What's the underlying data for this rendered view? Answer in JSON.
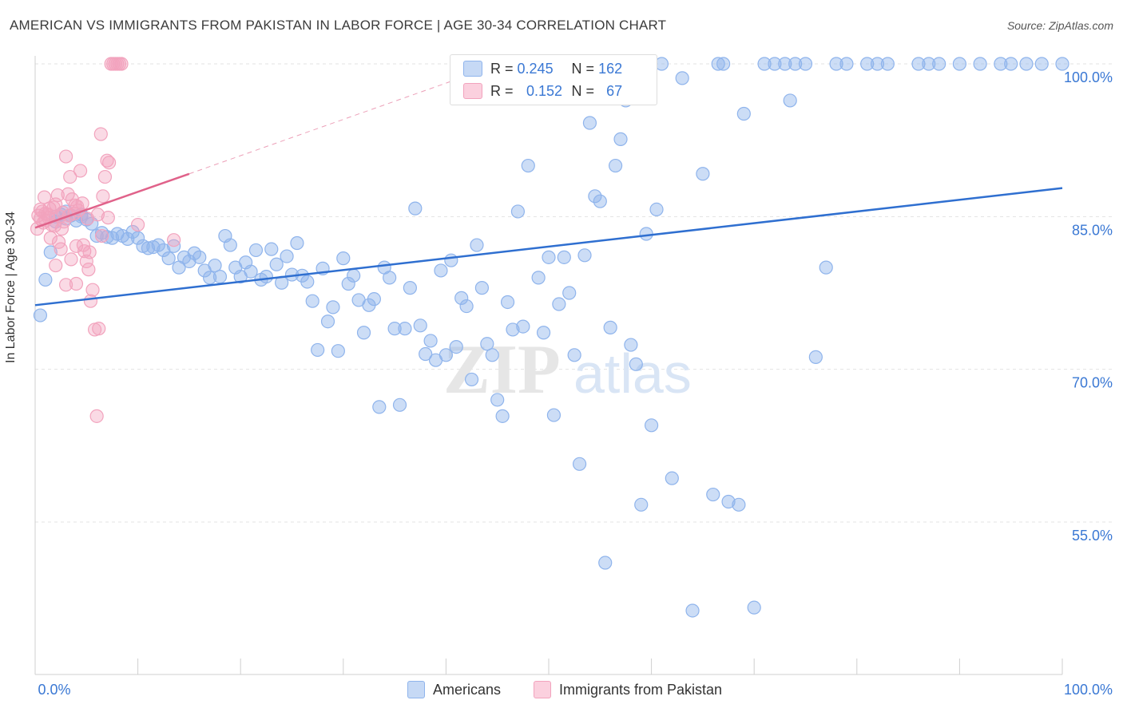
{
  "title": "AMERICAN VS IMMIGRANTS FROM PAKISTAN IN LABOR FORCE | AGE 30-34 CORRELATION CHART",
  "source": "Source: ZipAtlas.com",
  "legend": {
    "rows": [
      {
        "r_label": "R =",
        "r_value": "0.245",
        "n_label": "N =",
        "n_value": "162"
      },
      {
        "r_label": "R =",
        "r_value": "0.152",
        "n_label": "N =",
        "n_value": "67"
      }
    ]
  },
  "bottom_legend": [
    "Americans",
    "Immigrants from Pakistan"
  ],
  "watermark": "ZIPatlas",
  "colors": {
    "americans": "#8fb4ec",
    "americans_line": "#2f6fd0",
    "pakistan": "#f2a3bd",
    "pakistan_line": "#e0628a",
    "axis_text": "#3a78d4"
  },
  "chart_data": {
    "type": "scatter",
    "title": "AMERICAN VS IMMIGRANTS FROM PAKISTAN IN LABOR FORCE | AGE 30-34 CORRELATION CHART",
    "xlabel": "",
    "ylabel": "In Labor Force | Age 30-34",
    "xlim": [
      0,
      100
    ],
    "ylim": [
      40,
      102
    ],
    "x_tick_labels": [
      "0.0%",
      "100.0%"
    ],
    "y_ticks": [
      55,
      70,
      85,
      100
    ],
    "y_tick_labels": [
      "55.0%",
      "70.0%",
      "85.0%",
      "100.0%"
    ],
    "grid": true,
    "series": [
      {
        "name": "Americans",
        "r": 0.245,
        "n": 162,
        "trend": {
          "x": [
            0,
            100
          ],
          "y": [
            76.3,
            87.8
          ]
        },
        "points": [
          [
            0.5,
            75.3
          ],
          [
            1,
            78.8
          ],
          [
            1.5,
            81.5
          ],
          [
            2,
            85
          ],
          [
            2.5,
            85.2
          ],
          [
            3,
            84.8
          ],
          [
            3.5,
            85.1
          ],
          [
            4,
            84.6
          ],
          [
            4.5,
            85
          ],
          [
            5,
            84.7
          ],
          [
            5.5,
            84.3
          ],
          [
            6,
            83.1
          ],
          [
            6.5,
            83.4
          ],
          [
            7,
            83
          ],
          [
            7.5,
            82.9
          ],
          [
            8,
            83.3
          ],
          [
            8.5,
            83.1
          ],
          [
            9,
            82.8
          ],
          [
            9.5,
            83.5
          ],
          [
            10,
            82.9
          ],
          [
            10.5,
            82.1
          ],
          [
            11,
            81.9
          ],
          [
            11.5,
            82
          ],
          [
            12,
            82.2
          ],
          [
            12.5,
            81.7
          ],
          [
            13,
            80.9
          ],
          [
            13.5,
            82.1
          ],
          [
            14,
            80
          ],
          [
            14.5,
            81
          ],
          [
            15,
            80.6
          ],
          [
            15.5,
            81.4
          ],
          [
            16,
            81
          ],
          [
            16.5,
            79.7
          ],
          [
            17,
            79
          ],
          [
            17.5,
            80.2
          ],
          [
            18,
            79.1
          ],
          [
            18.5,
            83.1
          ],
          [
            19,
            82.2
          ],
          [
            19.5,
            80
          ],
          [
            20,
            79.1
          ],
          [
            20.5,
            80.5
          ],
          [
            21,
            79.6
          ],
          [
            21.5,
            81.7
          ],
          [
            22,
            78.8
          ],
          [
            22.5,
            79.1
          ],
          [
            23,
            81.8
          ],
          [
            23.5,
            80.3
          ],
          [
            24,
            78.5
          ],
          [
            24.5,
            81.1
          ],
          [
            25,
            79.3
          ],
          [
            25.5,
            82.4
          ],
          [
            26,
            79.2
          ],
          [
            26.5,
            78.6
          ],
          [
            27,
            76.7
          ],
          [
            27.5,
            71.9
          ],
          [
            28,
            79.9
          ],
          [
            28.5,
            74.7
          ],
          [
            29,
            76.1
          ],
          [
            29.5,
            71.8
          ],
          [
            30,
            80.9
          ],
          [
            30.5,
            78.4
          ],
          [
            31,
            79.2
          ],
          [
            31.5,
            76.8
          ],
          [
            32,
            73.6
          ],
          [
            32.5,
            76.3
          ],
          [
            33,
            76.9
          ],
          [
            33.5,
            66.3
          ],
          [
            34,
            80
          ],
          [
            34.5,
            79
          ],
          [
            35,
            74
          ],
          [
            35.5,
            66.5
          ],
          [
            36,
            74
          ],
          [
            36.5,
            78
          ],
          [
            37,
            85.8
          ],
          [
            37.5,
            74.3
          ],
          [
            38,
            71.5
          ],
          [
            38.5,
            72.8
          ],
          [
            39,
            70.9
          ],
          [
            39.5,
            79.7
          ],
          [
            40,
            71.4
          ],
          [
            40.5,
            80.7
          ],
          [
            41,
            72.2
          ],
          [
            41.5,
            77
          ],
          [
            42,
            76.2
          ],
          [
            42.5,
            69
          ],
          [
            43,
            82.2
          ],
          [
            43.5,
            78
          ],
          [
            44,
            72.5
          ],
          [
            44.5,
            71.4
          ],
          [
            45,
            67
          ],
          [
            45.5,
            65.4
          ],
          [
            46,
            76.6
          ],
          [
            46.5,
            73.9
          ],
          [
            47,
            85.5
          ],
          [
            47.5,
            74.2
          ],
          [
            48,
            90
          ],
          [
            48.5,
            97.5
          ],
          [
            49,
            79
          ],
          [
            49.5,
            73.6
          ],
          [
            50,
            81
          ],
          [
            50.5,
            65.5
          ],
          [
            51,
            76.4
          ],
          [
            51.5,
            81
          ],
          [
            52,
            77.5
          ],
          [
            52.5,
            71.4
          ],
          [
            53,
            60.7
          ],
          [
            53.5,
            81.2
          ],
          [
            54,
            94.2
          ],
          [
            54.5,
            87
          ],
          [
            55,
            86.5
          ],
          [
            55.5,
            51
          ],
          [
            56,
            74.1
          ],
          [
            56.5,
            90
          ],
          [
            57,
            92.6
          ],
          [
            57.5,
            96.4
          ],
          [
            58,
            72.4
          ],
          [
            58.5,
            70.5
          ],
          [
            59,
            56.7
          ],
          [
            59.5,
            83.3
          ],
          [
            60,
            64.5
          ],
          [
            60.5,
            85.7
          ],
          [
            61,
            100
          ],
          [
            62,
            59.3
          ],
          [
            63,
            98.6
          ],
          [
            64,
            46.3
          ],
          [
            65,
            89.2
          ],
          [
            66,
            57.7
          ],
          [
            66.5,
            100
          ],
          [
            67,
            100
          ],
          [
            67.5,
            57
          ],
          [
            68.5,
            56.7
          ],
          [
            69,
            95.1
          ],
          [
            70,
            46.6
          ],
          [
            71,
            100
          ],
          [
            72,
            100
          ],
          [
            73,
            100
          ],
          [
            73.5,
            96.4
          ],
          [
            74,
            100
          ],
          [
            75,
            100
          ],
          [
            76,
            71.2
          ],
          [
            77,
            80
          ],
          [
            78,
            100
          ],
          [
            79,
            100
          ],
          [
            81,
            100
          ],
          [
            82,
            100
          ],
          [
            83,
            100
          ],
          [
            86,
            100
          ],
          [
            87,
            100
          ],
          [
            88,
            100
          ],
          [
            90,
            100
          ],
          [
            92,
            100
          ],
          [
            94,
            100
          ],
          [
            95,
            100
          ],
          [
            96.5,
            100
          ],
          [
            98,
            100
          ],
          [
            100,
            100
          ],
          [
            55,
            100
          ],
          [
            58,
            100
          ],
          [
            52.5,
            100
          ],
          [
            2,
            84.5
          ],
          [
            3,
            85.5
          ],
          [
            4.5,
            85.2
          ]
        ]
      },
      {
        "name": "Immigrants from Pakistan",
        "r": 0.152,
        "n": 67,
        "trend": {
          "x": [
            0,
            15
          ],
          "y": [
            83.9,
            89.2
          ]
        },
        "trend_ext": {
          "x": [
            15,
            47
          ],
          "y": [
            89.2,
            100.6
          ]
        },
        "points": [
          [
            0.3,
            85.1
          ],
          [
            0.5,
            84.8
          ],
          [
            0.7,
            85.5
          ],
          [
            0.9,
            86.9
          ],
          [
            1,
            84.6
          ],
          [
            1.2,
            85.2
          ],
          [
            1.4,
            85.8
          ],
          [
            1.6,
            84.2
          ],
          [
            1.8,
            85.9
          ],
          [
            2,
            86.2
          ],
          [
            2.2,
            87.1
          ],
          [
            2.4,
            85
          ],
          [
            2.6,
            83.8
          ],
          [
            2.8,
            84.5
          ],
          [
            3,
            90.9
          ],
          [
            3.2,
            87.2
          ],
          [
            3.4,
            88.9
          ],
          [
            3.6,
            86.7
          ],
          [
            3.8,
            85.3
          ],
          [
            4,
            82.1
          ],
          [
            4.2,
            85.6
          ],
          [
            4.4,
            89.5
          ],
          [
            4.6,
            86.3
          ],
          [
            4.8,
            81.6
          ],
          [
            5,
            80.6
          ],
          [
            5.2,
            79.8
          ],
          [
            5.4,
            76.7
          ],
          [
            5.6,
            77.8
          ],
          [
            5.8,
            73.9
          ],
          [
            6,
            65.4
          ],
          [
            6.2,
            74
          ],
          [
            6.4,
            93.1
          ],
          [
            6.6,
            87
          ],
          [
            6.8,
            88.9
          ],
          [
            7,
            90.5
          ],
          [
            7.2,
            90.3
          ],
          [
            7.4,
            100
          ],
          [
            7.6,
            100
          ],
          [
            7.8,
            100
          ],
          [
            8,
            100
          ],
          [
            8.2,
            100
          ],
          [
            8.4,
            100
          ],
          [
            13.5,
            82.7
          ],
          [
            10,
            84.2
          ],
          [
            6.5,
            83.1
          ],
          [
            4,
            78.4
          ],
          [
            3,
            78.3
          ],
          [
            2,
            80.2
          ],
          [
            1.5,
            82.9
          ],
          [
            2.5,
            81.8
          ],
          [
            3.5,
            80.8
          ],
          [
            1,
            85.3
          ],
          [
            0.5,
            85.7
          ],
          [
            0.8,
            84.4
          ],
          [
            1.3,
            84.9
          ],
          [
            2.7,
            85.4
          ],
          [
            3.3,
            85.1
          ],
          [
            4.1,
            86
          ],
          [
            5.1,
            84.8
          ],
          [
            6.1,
            85.2
          ],
          [
            7.1,
            84.9
          ],
          [
            1.9,
            84.1
          ],
          [
            2.3,
            82.5
          ],
          [
            4.7,
            82.2
          ],
          [
            5.3,
            81.5
          ],
          [
            3.9,
            86.1
          ],
          [
            0.2,
            83.8
          ]
        ]
      }
    ]
  }
}
